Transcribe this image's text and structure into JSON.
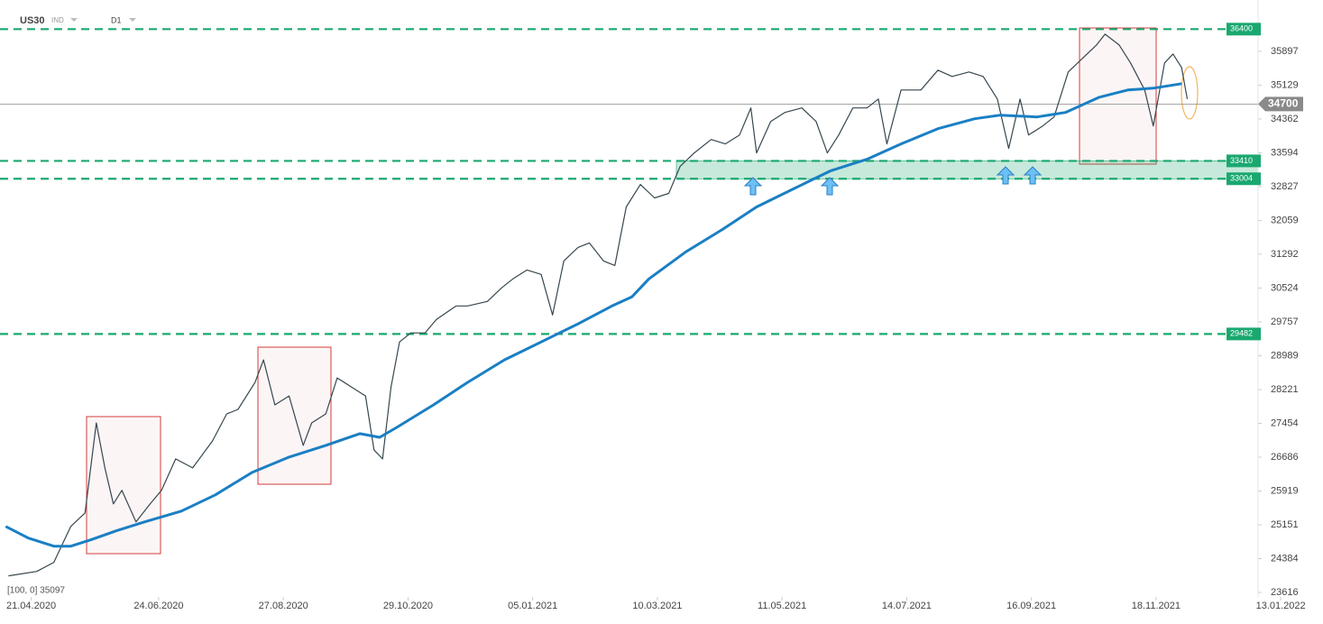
{
  "header": {
    "symbol": "US30",
    "market": "IND",
    "interval": "D1"
  },
  "chart_data": {
    "type": "line",
    "indicator": "[100, 0] 35097",
    "xlim": [
      0,
      444
    ],
    "ylim": [
      23514,
      37061
    ],
    "xticks": [
      {
        "value": 11,
        "label": "21.04.2020"
      },
      {
        "value": 56,
        "label": "24.06.2020"
      },
      {
        "value": 100,
        "label": "27.08.2020"
      },
      {
        "value": 144,
        "label": "29.10.2020"
      },
      {
        "value": 188,
        "label": "05.01.2021"
      },
      {
        "value": 232,
        "label": "10.03.2021"
      },
      {
        "value": 276,
        "label": "11.05.2021"
      },
      {
        "value": 320,
        "label": "14.07.2021"
      },
      {
        "value": 364,
        "label": "16.09.2021"
      },
      {
        "value": 408,
        "label": "18.11.2021"
      },
      {
        "value": 452,
        "label": "13.01.2022"
      }
    ],
    "yticks": [
      35897,
      35129,
      34362,
      33594,
      32827,
      32059,
      31292,
      30524,
      29757,
      28989,
      28221,
      27454,
      26686,
      25919,
      25151,
      24384,
      23616
    ],
    "series": [
      {
        "color": "#37474f",
        "x": [
          3,
          13,
          19,
          25,
          30,
          34,
          37,
          40,
          43,
          48,
          53,
          57,
          62,
          68,
          75,
          80,
          84,
          90,
          93,
          97,
          102,
          107,
          110,
          115,
          119,
          124,
          129,
          132,
          135,
          138,
          141,
          145,
          150,
          154,
          161,
          165,
          172,
          177,
          181,
          186,
          191,
          195,
          199,
          204,
          208,
          213,
          217,
          221,
          226,
          231,
          236,
          240,
          245,
          251,
          256,
          261,
          265,
          267,
          272,
          277,
          283,
          288,
          292,
          296,
          301,
          306,
          310,
          313,
          318,
          325,
          331,
          336,
          342,
          347,
          352,
          356,
          360,
          363,
          368,
          372,
          377,
          382,
          387,
          390,
          395,
          399,
          404,
          407,
          411,
          414,
          417,
          419
        ],
        "values": [
          23992,
          24094,
          24299,
          25115,
          25422,
          27464,
          26443,
          25626,
          25932,
          25217,
          25626,
          25932,
          26647,
          26443,
          27055,
          27668,
          27770,
          28383,
          28893,
          27872,
          28076,
          26954,
          27464,
          27668,
          28485,
          28281,
          28076,
          26851,
          26647,
          28281,
          29301,
          29506,
          29506,
          29812,
          30118,
          30118,
          30220,
          30527,
          30731,
          30935,
          30833,
          29914,
          31139,
          31446,
          31548,
          31139,
          31037,
          32364,
          32875,
          32569,
          32671,
          33283,
          33590,
          33896,
          33794,
          33998,
          34611,
          33590,
          34304,
          34509,
          34611,
          34304,
          33590,
          33998,
          34611,
          34611,
          34815,
          33794,
          35019,
          35019,
          35468,
          35325,
          35427,
          35325,
          34815,
          33692,
          34815,
          33998,
          34202,
          34407,
          35427,
          35734,
          36040,
          36285,
          36040,
          35632,
          35019,
          34202,
          35632,
          35836,
          35529,
          34815
        ]
      },
      {
        "color": "#1a7fc4",
        "x": [
          2,
          10,
          19,
          25,
          32,
          41,
          51,
          64,
          76,
          89,
          102,
          115,
          127,
          134,
          140,
          153,
          165,
          178,
          191,
          204,
          216,
          223,
          229,
          242,
          255,
          267,
          280,
          293,
          306,
          318,
          331,
          344,
          353,
          366,
          376,
          388,
          398,
          407,
          417
        ],
        "values": [
          25115,
          24850,
          24666,
          24666,
          24809,
          25013,
          25217,
          25462,
          25830,
          26340,
          26688,
          26953,
          27219,
          27137,
          27362,
          27872,
          28383,
          28893,
          29301,
          29710,
          30118,
          30322,
          30731,
          31344,
          31854,
          32364,
          32773,
          33181,
          33447,
          33794,
          34141,
          34366,
          34447,
          34406,
          34509,
          34856,
          35019,
          35060,
          35162
        ]
      }
    ],
    "levels": [
      36400,
      33410,
      33004,
      29482
    ],
    "level_color": "#1aa86f",
    "current_price": 34700
  }
}
